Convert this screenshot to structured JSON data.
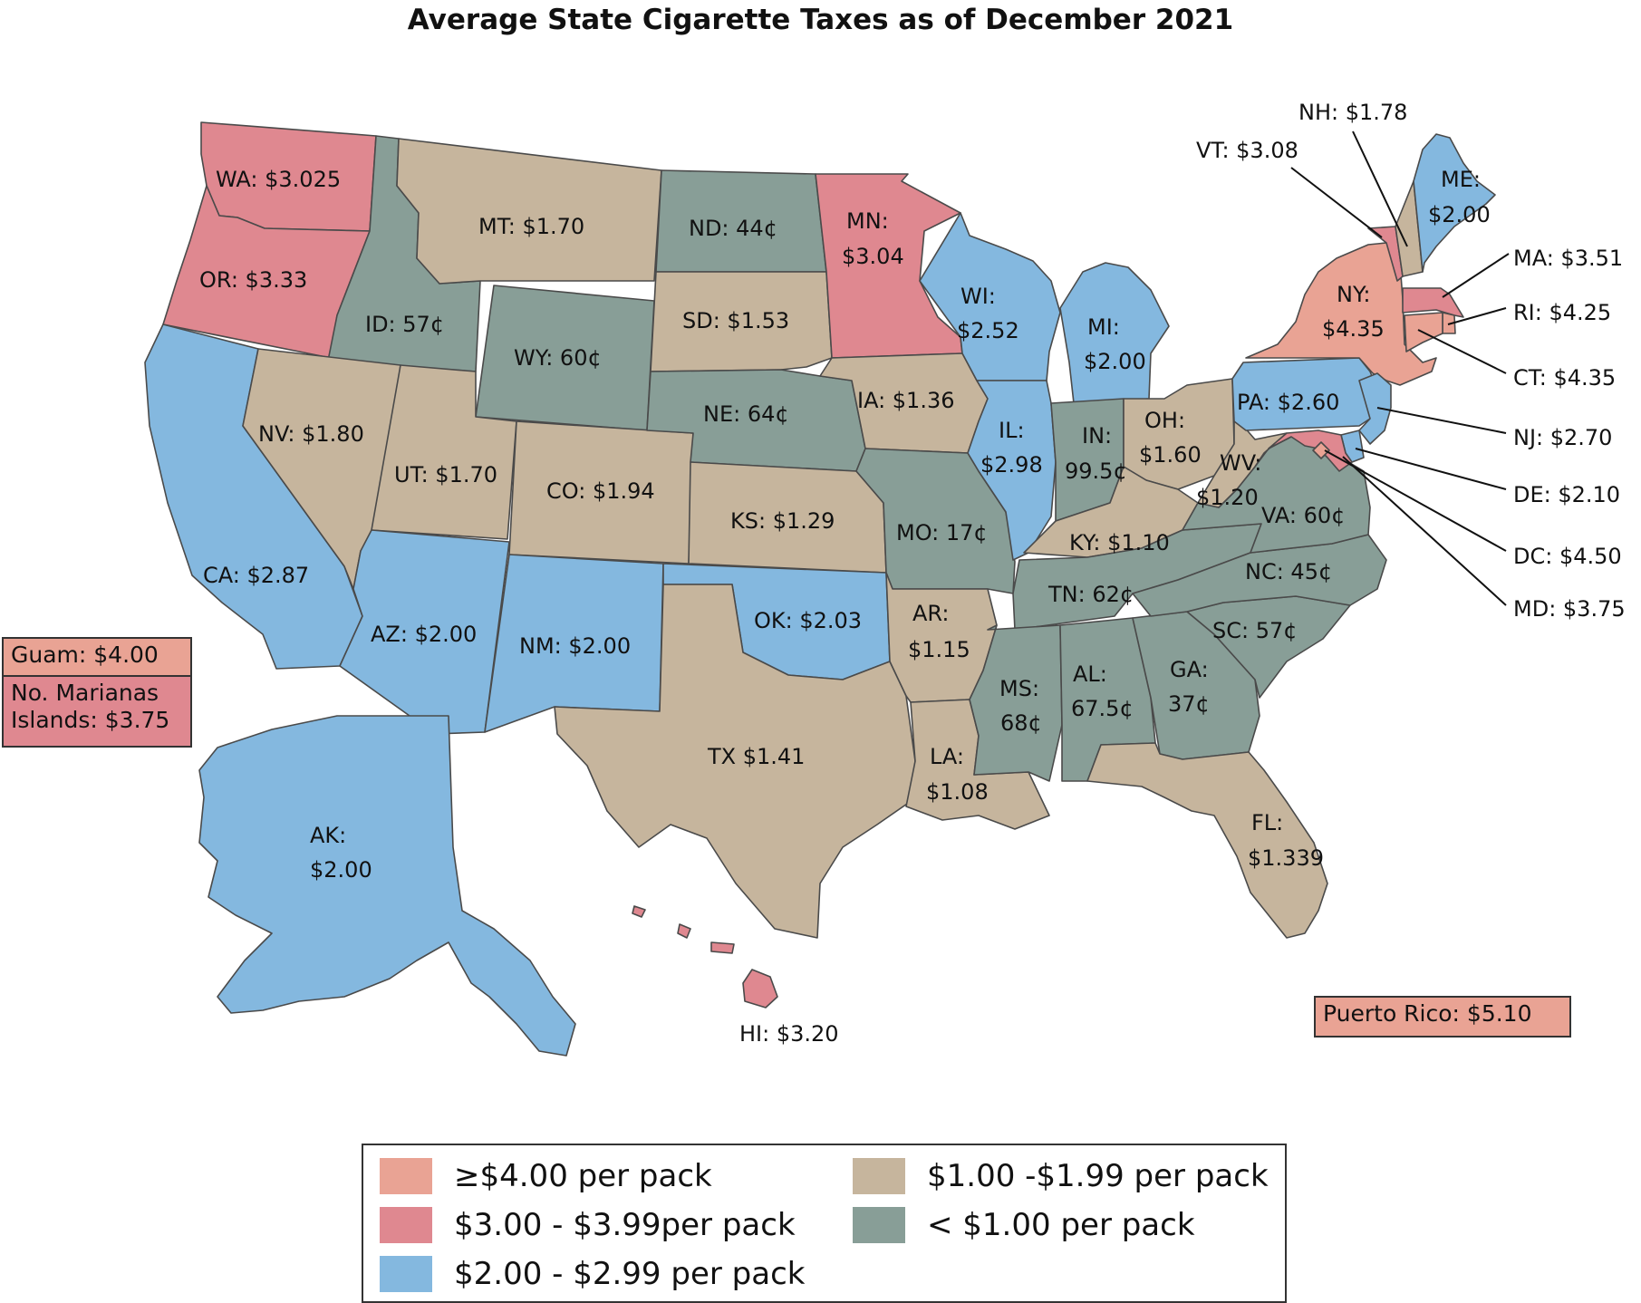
{
  "title": "Average State Cigarette Taxes as of December 2021",
  "colors": {
    "ge4": "#e9a394",
    "c3": "#df8890",
    "c2": "#84b8df",
    "c1": "#c6b59d",
    "lt1": "#889e97"
  },
  "states": [
    {
      "abbr": "WA",
      "label": "WA: $3.025",
      "tax": 3.025,
      "category": "c3"
    },
    {
      "abbr": "OR",
      "label": "OR: $3.33",
      "tax": 3.33,
      "category": "c3"
    },
    {
      "abbr": "CA",
      "label": "CA: $2.87",
      "tax": 2.87,
      "category": "c2"
    },
    {
      "abbr": "ID",
      "label": "ID: 57¢",
      "tax": 0.57,
      "category": "lt1"
    },
    {
      "abbr": "NV",
      "label": "NV: $1.80",
      "tax": 1.8,
      "category": "c1"
    },
    {
      "abbr": "MT",
      "label": "MT: $1.70",
      "tax": 1.7,
      "category": "c1"
    },
    {
      "abbr": "WY",
      "label": "WY: 60¢",
      "tax": 0.6,
      "category": "lt1"
    },
    {
      "abbr": "UT",
      "label": "UT: $1.70",
      "tax": 1.7,
      "category": "c1"
    },
    {
      "abbr": "CO",
      "label": "CO: $1.94",
      "tax": 1.94,
      "category": "c1"
    },
    {
      "abbr": "AZ",
      "label": "AZ: $2.00",
      "tax": 2.0,
      "category": "c2"
    },
    {
      "abbr": "NM",
      "label": "NM: $2.00",
      "tax": 2.0,
      "category": "c2"
    },
    {
      "abbr": "ND",
      "label": "ND: 44¢",
      "tax": 0.44,
      "category": "lt1"
    },
    {
      "abbr": "SD",
      "label": "SD: $1.53",
      "tax": 1.53,
      "category": "c1"
    },
    {
      "abbr": "NE",
      "label": "NE: 64¢",
      "tax": 0.64,
      "category": "lt1"
    },
    {
      "abbr": "KS",
      "label": "KS: $1.29",
      "tax": 1.29,
      "category": "c1"
    },
    {
      "abbr": "OK",
      "label": "OK: $2.03",
      "tax": 2.03,
      "category": "c2"
    },
    {
      "abbr": "TX",
      "label": "TX $1.41",
      "tax": 1.41,
      "category": "c1"
    },
    {
      "abbr": "MN",
      "label": "MN: $3.04",
      "tax": 3.04,
      "category": "c3"
    },
    {
      "abbr": "IA",
      "label": "IA: $1.36",
      "tax": 1.36,
      "category": "c1"
    },
    {
      "abbr": "MO",
      "label": "MO: 17¢",
      "tax": 0.17,
      "category": "lt1"
    },
    {
      "abbr": "AR",
      "label": "AR: $1.15",
      "tax": 1.15,
      "category": "c1"
    },
    {
      "abbr": "LA",
      "label": "LA: $1.08",
      "tax": 1.08,
      "category": "c1"
    },
    {
      "abbr": "WI",
      "label": "WI: $2.52",
      "tax": 2.52,
      "category": "c2"
    },
    {
      "abbr": "IL",
      "label": "IL: $2.98",
      "tax": 2.98,
      "category": "c2"
    },
    {
      "abbr": "MI",
      "label": "MI: $2.00",
      "tax": 2.0,
      "category": "c2"
    },
    {
      "abbr": "IN",
      "label": "IN: 99.5¢",
      "tax": 0.995,
      "category": "lt1"
    },
    {
      "abbr": "OH",
      "label": "OH: $1.60",
      "tax": 1.6,
      "category": "c1"
    },
    {
      "abbr": "KY",
      "label": "KY: $1.10",
      "tax": 1.1,
      "category": "c1"
    },
    {
      "abbr": "TN",
      "label": "TN: 62¢",
      "tax": 0.62,
      "category": "lt1"
    },
    {
      "abbr": "MS",
      "label": "MS: 68¢",
      "tax": 0.68,
      "category": "lt1"
    },
    {
      "abbr": "AL",
      "label": "AL: 67.5¢",
      "tax": 0.675,
      "category": "lt1"
    },
    {
      "abbr": "GA",
      "label": "GA: 37¢",
      "tax": 0.37,
      "category": "lt1"
    },
    {
      "abbr": "FL",
      "label": "FL: $1.339",
      "tax": 1.339,
      "category": "c1"
    },
    {
      "abbr": "SC",
      "label": "SC: 57¢",
      "tax": 0.57,
      "category": "lt1"
    },
    {
      "abbr": "NC",
      "label": "NC: 45¢",
      "tax": 0.45,
      "category": "lt1"
    },
    {
      "abbr": "VA",
      "label": "VA: 60¢",
      "tax": 0.6,
      "category": "lt1"
    },
    {
      "abbr": "WV",
      "label": "WV: $1.20",
      "tax": 1.2,
      "category": "c1"
    },
    {
      "abbr": "PA",
      "label": "PA: $2.60",
      "tax": 2.6,
      "category": "c2"
    },
    {
      "abbr": "NY",
      "label": "NY: $4.35",
      "tax": 4.35,
      "category": "ge4"
    },
    {
      "abbr": "VT",
      "label": "VT: $3.08",
      "tax": 3.08,
      "category": "c3"
    },
    {
      "abbr": "NH",
      "label": "NH: $1.78",
      "tax": 1.78,
      "category": "c1"
    },
    {
      "abbr": "ME",
      "label": "ME: $2.00",
      "tax": 2.0,
      "category": "c2"
    },
    {
      "abbr": "MA",
      "label": "MA: $3.51",
      "tax": 3.51,
      "category": "c3"
    },
    {
      "abbr": "RI",
      "label": "RI: $4.25",
      "tax": 4.25,
      "category": "ge4"
    },
    {
      "abbr": "CT",
      "label": "CT: $4.35",
      "tax": 4.35,
      "category": "ge4"
    },
    {
      "abbr": "NJ",
      "label": "NJ: $2.70",
      "tax": 2.7,
      "category": "c2"
    },
    {
      "abbr": "DE",
      "label": "DE: $2.10",
      "tax": 2.1,
      "category": "c2"
    },
    {
      "abbr": "DC",
      "label": "DC: $4.50",
      "tax": 4.5,
      "category": "ge4"
    },
    {
      "abbr": "MD",
      "label": "MD: $3.75",
      "tax": 3.75,
      "category": "c3"
    },
    {
      "abbr": "AK",
      "label": "AK: $2.00",
      "tax": 2.0,
      "category": "c2"
    },
    {
      "abbr": "HI",
      "label": "HI: $3.20",
      "tax": 3.2,
      "category": "c3"
    }
  ],
  "territories": {
    "guam": {
      "label": "Guam: $4.00",
      "tax": 4.0,
      "category": "ge4"
    },
    "marianas": {
      "line1": "No. Marianas",
      "line2": "Islands: $3.75",
      "tax": 3.75,
      "category": "c3"
    },
    "puerto_rico": {
      "label": "Puerto Rico: $5.10",
      "tax": 5.1,
      "category": "ge4"
    }
  },
  "legend": [
    {
      "key": "ge4",
      "label": "≥$4.00 per pack"
    },
    {
      "key": "c3",
      "label": "$3.00 - $3.99per pack"
    },
    {
      "key": "c2",
      "label": "$2.00 - $2.99 per pack"
    },
    {
      "key": "c1",
      "label": "$1.00 -$1.99 per pack"
    },
    {
      "key": "lt1",
      "label": "< $1.00 per pack"
    }
  ]
}
